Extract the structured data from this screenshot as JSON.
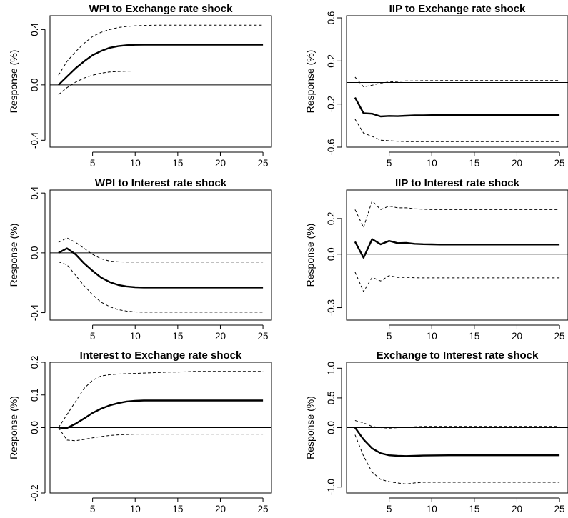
{
  "chart_data": [
    {
      "type": "line",
      "title": "WPI to Exchange rate shock",
      "ylabel": "Response (%)",
      "xlim": [
        0,
        26
      ],
      "ylim": [
        -0.45,
        0.5
      ],
      "x_ticks": [
        5,
        10,
        15,
        20,
        25
      ],
      "y_ticks": [
        -0.4,
        0.0,
        0.4
      ],
      "y_tick_labels": [
        "-0.4",
        "0.0",
        "0.4"
      ],
      "zero_line": true,
      "x": [
        1,
        2,
        3,
        4,
        5,
        6,
        7,
        8,
        9,
        10,
        11,
        12,
        13,
        14,
        15,
        16,
        17,
        18,
        19,
        20,
        21,
        22,
        23,
        24,
        25
      ],
      "series": [
        {
          "style": "solid",
          "values": [
            0.0,
            0.06,
            0.12,
            0.17,
            0.215,
            0.245,
            0.268,
            0.28,
            0.287,
            0.29,
            0.291,
            0.291,
            0.291,
            0.291,
            0.291,
            0.291,
            0.291,
            0.291,
            0.291,
            0.291,
            0.291,
            0.291,
            0.291,
            0.291,
            0.291
          ]
        },
        {
          "style": "dashed",
          "values": [
            0.07,
            0.17,
            0.24,
            0.3,
            0.35,
            0.38,
            0.4,
            0.415,
            0.422,
            0.427,
            0.43,
            0.431,
            0.432,
            0.432,
            0.432,
            0.432,
            0.432,
            0.432,
            0.432,
            0.432,
            0.432,
            0.432,
            0.432,
            0.432,
            0.432
          ]
        },
        {
          "style": "dashed",
          "values": [
            -0.07,
            -0.02,
            0.02,
            0.05,
            0.07,
            0.085,
            0.093,
            0.097,
            0.099,
            0.1,
            0.1,
            0.1,
            0.1,
            0.1,
            0.1,
            0.1,
            0.1,
            0.1,
            0.1,
            0.1,
            0.1,
            0.1,
            0.1,
            0.1,
            0.1
          ]
        }
      ]
    },
    {
      "type": "line",
      "title": "IIP to Exchange rate shock",
      "ylabel": "Response (%)",
      "xlim": [
        0,
        26
      ],
      "ylim": [
        -0.6,
        0.62
      ],
      "x_ticks": [
        5,
        10,
        15,
        20,
        25
      ],
      "y_ticks": [
        -0.6,
        -0.2,
        0.2,
        0.6
      ],
      "y_tick_labels": [
        "-0.6",
        "-0.2",
        "0.2",
        "0.6"
      ],
      "zero_line": true,
      "x": [
        1,
        2,
        3,
        4,
        5,
        6,
        7,
        8,
        9,
        10,
        11,
        12,
        13,
        14,
        15,
        16,
        17,
        18,
        19,
        20,
        21,
        22,
        23,
        24,
        25
      ],
      "series": [
        {
          "style": "solid",
          "values": [
            -0.14,
            -0.285,
            -0.29,
            -0.315,
            -0.31,
            -0.312,
            -0.308,
            -0.305,
            -0.304,
            -0.303,
            -0.302,
            -0.302,
            -0.302,
            -0.302,
            -0.302,
            -0.302,
            -0.302,
            -0.302,
            -0.302,
            -0.302,
            -0.302,
            -0.302,
            -0.302,
            -0.302,
            -0.302
          ]
        },
        {
          "style": "dashed",
          "values": [
            0.05,
            -0.04,
            -0.025,
            -0.005,
            0.005,
            0.01,
            0.015,
            0.015,
            0.017,
            0.017,
            0.018,
            0.018,
            0.018,
            0.018,
            0.018,
            0.018,
            0.018,
            0.018,
            0.018,
            0.018,
            0.018,
            0.018,
            0.018,
            0.018,
            0.018
          ]
        },
        {
          "style": "dashed",
          "values": [
            -0.34,
            -0.47,
            -0.5,
            -0.535,
            -0.54,
            -0.545,
            -0.548,
            -0.548,
            -0.548,
            -0.548,
            -0.548,
            -0.548,
            -0.548,
            -0.548,
            -0.548,
            -0.548,
            -0.548,
            -0.548,
            -0.548,
            -0.548,
            -0.548,
            -0.548,
            -0.548,
            -0.548,
            -0.548
          ]
        }
      ]
    },
    {
      "type": "line",
      "title": "WPI to Interest rate shock",
      "ylabel": "Response (%)",
      "xlim": [
        0,
        26
      ],
      "ylim": [
        -0.45,
        0.42
      ],
      "x_ticks": [
        5,
        10,
        15,
        20,
        25
      ],
      "y_ticks": [
        -0.4,
        0.0,
        0.4
      ],
      "y_tick_labels": [
        "-0.4",
        "0.0",
        "0.4"
      ],
      "zero_line": true,
      "x": [
        1,
        2,
        3,
        4,
        5,
        6,
        7,
        8,
        9,
        10,
        11,
        12,
        13,
        14,
        15,
        16,
        17,
        18,
        19,
        20,
        21,
        22,
        23,
        24,
        25
      ],
      "series": [
        {
          "style": "solid",
          "values": [
            0.0,
            0.03,
            -0.01,
            -0.07,
            -0.12,
            -0.165,
            -0.195,
            -0.215,
            -0.225,
            -0.23,
            -0.232,
            -0.232,
            -0.232,
            -0.232,
            -0.232,
            -0.232,
            -0.232,
            -0.232,
            -0.232,
            -0.232,
            -0.232,
            -0.232,
            -0.232,
            -0.232,
            -0.232
          ]
        },
        {
          "style": "dashed",
          "values": [
            0.07,
            0.1,
            0.07,
            0.03,
            -0.01,
            -0.04,
            -0.055,
            -0.06,
            -0.062,
            -0.062,
            -0.062,
            -0.062,
            -0.062,
            -0.062,
            -0.062,
            -0.062,
            -0.062,
            -0.062,
            -0.062,
            -0.062,
            -0.062,
            -0.062,
            -0.062,
            -0.062,
            -0.062
          ]
        },
        {
          "style": "dashed",
          "values": [
            -0.06,
            -0.08,
            -0.15,
            -0.22,
            -0.28,
            -0.33,
            -0.36,
            -0.38,
            -0.39,
            -0.395,
            -0.397,
            -0.397,
            -0.397,
            -0.397,
            -0.397,
            -0.397,
            -0.397,
            -0.397,
            -0.397,
            -0.397,
            -0.397,
            -0.397,
            -0.397,
            -0.397,
            -0.397
          ]
        }
      ]
    },
    {
      "type": "line",
      "title": "IIP to Interest rate shock",
      "ylabel": "Response (%)",
      "xlim": [
        0,
        26
      ],
      "ylim": [
        -0.37,
        0.36
      ],
      "x_ticks": [
        5,
        10,
        15,
        20,
        25
      ],
      "y_ticks": [
        -0.3,
        0.0,
        0.2
      ],
      "y_tick_labels": [
        "-0.3",
        "0.0",
        "0.2"
      ],
      "zero_line": true,
      "x": [
        1,
        2,
        3,
        4,
        5,
        6,
        7,
        8,
        9,
        10,
        11,
        12,
        13,
        14,
        15,
        16,
        17,
        18,
        19,
        20,
        21,
        22,
        23,
        24,
        25
      ],
      "series": [
        {
          "style": "solid",
          "values": [
            0.07,
            -0.02,
            0.085,
            0.055,
            0.075,
            0.062,
            0.063,
            0.058,
            0.056,
            0.055,
            0.054,
            0.054,
            0.054,
            0.054,
            0.054,
            0.054,
            0.054,
            0.054,
            0.054,
            0.054,
            0.054,
            0.054,
            0.054,
            0.054,
            0.054
          ]
        },
        {
          "style": "dashed",
          "values": [
            0.25,
            0.15,
            0.3,
            0.25,
            0.27,
            0.26,
            0.26,
            0.255,
            0.252,
            0.25,
            0.25,
            0.25,
            0.25,
            0.25,
            0.25,
            0.25,
            0.25,
            0.25,
            0.25,
            0.25,
            0.25,
            0.25,
            0.25,
            0.25,
            0.25
          ]
        },
        {
          "style": "dashed",
          "values": [
            -0.1,
            -0.21,
            -0.13,
            -0.15,
            -0.12,
            -0.13,
            -0.13,
            -0.132,
            -0.133,
            -0.133,
            -0.133,
            -0.133,
            -0.133,
            -0.133,
            -0.133,
            -0.133,
            -0.133,
            -0.133,
            -0.133,
            -0.133,
            -0.133,
            -0.133,
            -0.133,
            -0.133,
            -0.133
          ]
        }
      ]
    },
    {
      "type": "line",
      "title": "Interest to Exchange rate shock",
      "ylabel": "Response (%)",
      "xlim": [
        0,
        26
      ],
      "ylim": [
        -0.2,
        0.2
      ],
      "x_ticks": [
        5,
        10,
        15,
        20,
        25
      ],
      "y_ticks": [
        -0.2,
        0.0,
        0.1,
        0.2
      ],
      "y_tick_labels": [
        "-0.2",
        "0.0",
        "0.1",
        "0.2"
      ],
      "zero_line": true,
      "x": [
        1,
        2,
        3,
        4,
        5,
        6,
        7,
        8,
        9,
        10,
        11,
        12,
        13,
        14,
        15,
        16,
        17,
        18,
        19,
        20,
        21,
        22,
        23,
        24,
        25
      ],
      "series": [
        {
          "style": "solid",
          "values": [
            0.0,
            -0.001,
            0.012,
            0.028,
            0.045,
            0.058,
            0.068,
            0.075,
            0.08,
            0.082,
            0.083,
            0.083,
            0.083,
            0.083,
            0.083,
            0.083,
            0.083,
            0.083,
            0.083,
            0.083,
            0.083,
            0.083,
            0.083,
            0.083,
            0.083
          ]
        },
        {
          "style": "dashed",
          "values": [
            0.0,
            0.04,
            0.08,
            0.12,
            0.145,
            0.158,
            0.162,
            0.164,
            0.165,
            0.166,
            0.167,
            0.168,
            0.169,
            0.17,
            0.17,
            0.171,
            0.172,
            0.172,
            0.172,
            0.172,
            0.172,
            0.172,
            0.172,
            0.172,
            0.172
          ]
        },
        {
          "style": "dashed",
          "values": [
            0.0,
            -0.038,
            -0.04,
            -0.036,
            -0.031,
            -0.027,
            -0.024,
            -0.022,
            -0.021,
            -0.02,
            -0.02,
            -0.02,
            -0.02,
            -0.02,
            -0.02,
            -0.02,
            -0.02,
            -0.02,
            -0.02,
            -0.02,
            -0.02,
            -0.02,
            -0.02,
            -0.02,
            -0.02
          ]
        }
      ]
    },
    {
      "type": "line",
      "title": "Exchange to Interest rate shock",
      "ylabel": "Response (%)",
      "xlim": [
        0,
        26
      ],
      "ylim": [
        -1.1,
        1.1
      ],
      "x_ticks": [
        5,
        10,
        15,
        20,
        25
      ],
      "y_ticks": [
        -1.0,
        0.0,
        0.5,
        1.0
      ],
      "y_tick_labels": [
        "-1.0",
        "0.0",
        "0.5",
        "1.0"
      ],
      "zero_line": true,
      "x": [
        1,
        2,
        3,
        4,
        5,
        6,
        7,
        8,
        9,
        10,
        11,
        12,
        13,
        14,
        15,
        16,
        17,
        18,
        19,
        20,
        21,
        22,
        23,
        24,
        25
      ],
      "series": [
        {
          "style": "solid",
          "values": [
            0.0,
            -0.2,
            -0.35,
            -0.43,
            -0.465,
            -0.475,
            -0.478,
            -0.475,
            -0.47,
            -0.468,
            -0.466,
            -0.465,
            -0.465,
            -0.465,
            -0.465,
            -0.465,
            -0.465,
            -0.465,
            -0.465,
            -0.465,
            -0.465,
            -0.465,
            -0.465,
            -0.465,
            -0.465
          ]
        },
        {
          "style": "dashed",
          "values": [
            0.12,
            0.08,
            0.02,
            0.0,
            -0.01,
            0.0,
            0.01,
            0.015,
            0.02,
            0.02,
            0.02,
            0.02,
            0.02,
            0.02,
            0.02,
            0.02,
            0.02,
            0.02,
            0.02,
            0.02,
            0.02,
            0.02,
            0.02,
            0.02,
            0.02
          ]
        },
        {
          "style": "dashed",
          "values": [
            -0.12,
            -0.48,
            -0.75,
            -0.87,
            -0.91,
            -0.93,
            -0.95,
            -0.93,
            -0.92,
            -0.92,
            -0.92,
            -0.92,
            -0.92,
            -0.92,
            -0.92,
            -0.92,
            -0.92,
            -0.92,
            -0.92,
            -0.92,
            -0.92,
            -0.92,
            -0.92,
            -0.92,
            -0.92
          ]
        }
      ]
    }
  ]
}
